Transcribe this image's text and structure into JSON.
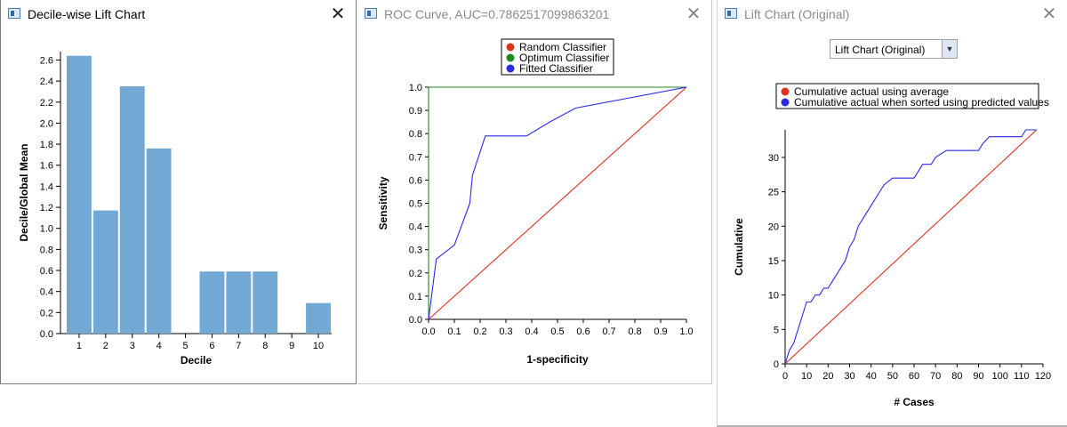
{
  "window1": {
    "title": "Decile-wise Lift Chart",
    "close_glyph": "✕"
  },
  "window2": {
    "title": "ROC Curve, AUC=0.7862517099863201",
    "close_glyph": "✕"
  },
  "window3": {
    "title": "Lift Chart (Original)",
    "close_glyph": "✕",
    "dropdown_value": "Lift Chart (Original)",
    "dropdown_glyph": "▼"
  },
  "colors": {
    "bar": "#72a9d4",
    "red": "#e0301e",
    "green": "#1e8a1e",
    "blue": "#2a2ae6"
  },
  "chart_data": [
    {
      "type": "bar",
      "title": "",
      "xlabel": "Decile",
      "ylabel": "Decile/Global Mean",
      "categories": [
        "1",
        "2",
        "3",
        "4",
        "5",
        "6",
        "7",
        "8",
        "9",
        "10"
      ],
      "values": [
        2.64,
        1.17,
        2.35,
        1.76,
        0,
        0.59,
        0.59,
        0.59,
        0,
        0.29
      ],
      "ylim": [
        0,
        2.68
      ],
      "yticks": [
        0.0,
        0.2,
        0.4,
        0.6,
        0.8,
        1.0,
        1.2,
        1.4,
        1.6,
        1.8,
        2.0,
        2.2,
        2.4,
        2.6
      ],
      "ytick_labels": [
        "0.0",
        "0.2",
        "0.4",
        "0.6",
        "0.8",
        "1.0",
        "1.2",
        "1.4",
        "1.6",
        "1.8",
        "2.0",
        "2.2",
        "2.4",
        "2.6"
      ]
    },
    {
      "type": "line",
      "title": "ROC Curve, AUC=0.7862517099863201",
      "xlabel": "1-specificity",
      "ylabel": "Sensitivity",
      "xlim": [
        0,
        1
      ],
      "ylim": [
        0,
        1
      ],
      "xtick_labels": [
        "0.0",
        "0.1",
        "0.2",
        "0.3",
        "0.4",
        "0.5",
        "0.6",
        "0.7",
        "0.8",
        "0.9",
        "1.0"
      ],
      "ytick_labels": [
        "0.0",
        "0.1",
        "0.2",
        "0.3",
        "0.4",
        "0.5",
        "0.6",
        "0.7",
        "0.8",
        "0.9",
        "1.0"
      ],
      "legend_placement": "top",
      "series": [
        {
          "name": "Random Classifier",
          "color": "#e0301e",
          "x": [
            0,
            1
          ],
          "y": [
            0,
            1
          ]
        },
        {
          "name": "Optimum Classifier",
          "color": "#1e8a1e",
          "x": [
            0,
            0,
            1
          ],
          "y": [
            0,
            1,
            1
          ]
        },
        {
          "name": "Fitted Classifier",
          "color": "#2a2ae6",
          "x": [
            0,
            0.03,
            0.1,
            0.16,
            0.17,
            0.22,
            0.38,
            0.47,
            0.57,
            1.0
          ],
          "y": [
            0,
            0.26,
            0.32,
            0.5,
            0.62,
            0.79,
            0.79,
            0.85,
            0.91,
            1.0
          ]
        }
      ]
    },
    {
      "type": "line",
      "title": "",
      "xlabel": "# Cases",
      "ylabel": "Cumulative",
      "xlim": [
        0,
        120
      ],
      "ylim": [
        0,
        34
      ],
      "xtick_labels": [
        "0",
        "10",
        "20",
        "30",
        "40",
        "50",
        "60",
        "70",
        "80",
        "90",
        "100",
        "110",
        "120"
      ],
      "ytick_labels": [
        "0",
        "5",
        "10",
        "15",
        "20",
        "25",
        "30"
      ],
      "legend_placement": "top",
      "series": [
        {
          "name": "Cumulative actual using average",
          "color": "#e0301e",
          "x": [
            0,
            117
          ],
          "y": [
            0,
            34
          ]
        },
        {
          "name": "Cumulative actual when sorted using predicted values",
          "color": "#2a2ae6",
          "x": [
            0,
            2,
            4,
            6,
            8,
            10,
            12,
            14,
            16,
            18,
            20,
            22,
            24,
            26,
            28,
            30,
            32,
            34,
            36,
            38,
            40,
            42,
            44,
            46,
            50,
            55,
            60,
            62,
            64,
            68,
            70,
            75,
            80,
            85,
            90,
            92,
            95,
            100,
            105,
            110,
            112,
            115,
            117
          ],
          "y": [
            0,
            2,
            3,
            5,
            7,
            9,
            9,
            10,
            10,
            11,
            11,
            12,
            13,
            14,
            15,
            17,
            18,
            20,
            21,
            22,
            23,
            24,
            25,
            26,
            27,
            27,
            27,
            28,
            29,
            29,
            30,
            31,
            31,
            31,
            31,
            32,
            33,
            33,
            33,
            33,
            34,
            34,
            34
          ]
        }
      ]
    }
  ]
}
